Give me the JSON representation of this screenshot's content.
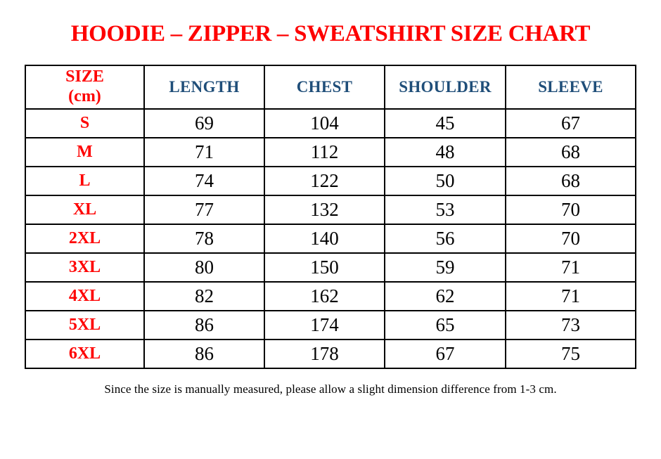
{
  "page": {
    "stray_mark": ".",
    "title": "HOODIE – ZIPPER – SWEATSHIRT SIZE CHART",
    "footnote": "Since the size is manually measured, please allow a slight dimension difference from 1-3 cm."
  },
  "colors": {
    "title_red": "#fe0000",
    "header_blue": "#1f4e79",
    "text_black": "#000000",
    "border_black": "#000000",
    "background": "#ffffff"
  },
  "table": {
    "header": {
      "size_line1": "SIZE",
      "size_line2": "(cm)"
    },
    "columns": [
      "LENGTH",
      "CHEST",
      "SHOULDER",
      "SLEEVE"
    ],
    "rows": [
      {
        "size": "S",
        "length": "69",
        "chest": "104",
        "shoulder": "45",
        "sleeve": "67"
      },
      {
        "size": "M",
        "length": "71",
        "chest": "112",
        "shoulder": "48",
        "sleeve": "68"
      },
      {
        "size": "L",
        "length": "74",
        "chest": "122",
        "shoulder": "50",
        "sleeve": "68"
      },
      {
        "size": "XL",
        "length": "77",
        "chest": "132",
        "shoulder": "53",
        "sleeve": "70"
      },
      {
        "size": "2XL",
        "length": "78",
        "chest": "140",
        "shoulder": "56",
        "sleeve": "70"
      },
      {
        "size": "3XL",
        "length": "80",
        "chest": "150",
        "shoulder": "59",
        "sleeve": "71"
      },
      {
        "size": "4XL",
        "length": "82",
        "chest": "162",
        "shoulder": "62",
        "sleeve": "71"
      },
      {
        "size": "5XL",
        "length": "86",
        "chest": "174",
        "shoulder": "65",
        "sleeve": "73"
      },
      {
        "size": "6XL",
        "length": "86",
        "chest": "178",
        "shoulder": "67",
        "sleeve": "75"
      }
    ]
  }
}
